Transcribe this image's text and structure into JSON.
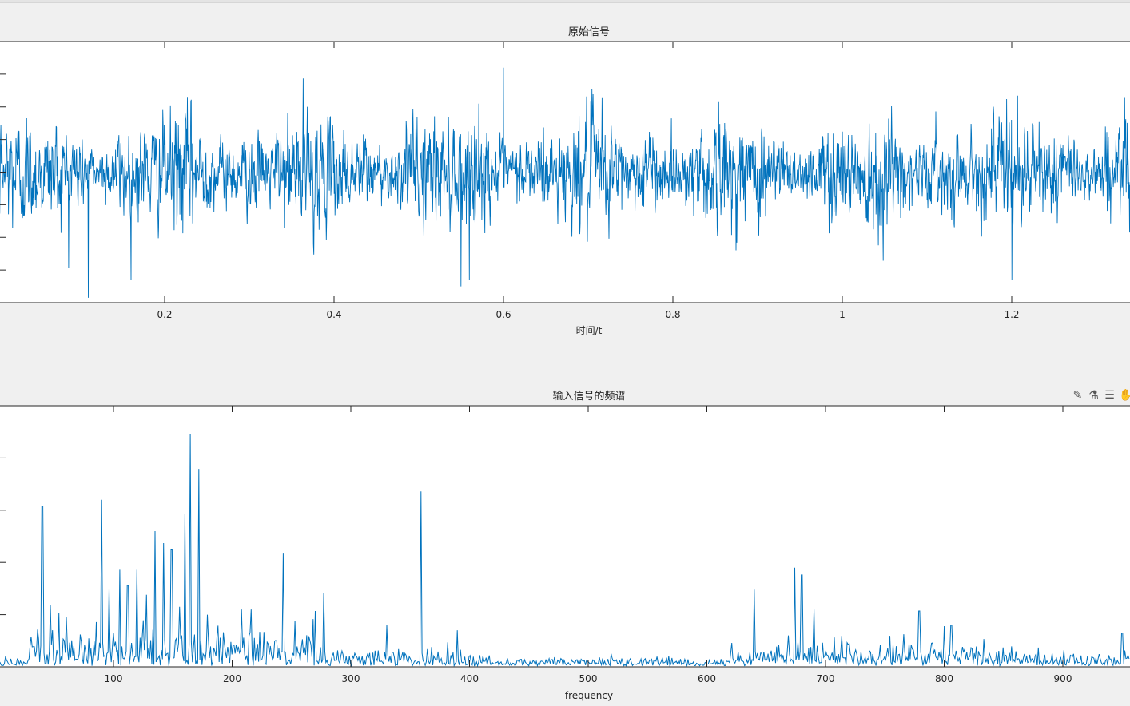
{
  "colors": {
    "line": "#0072bd",
    "axes": "#262626",
    "figure_bg": "#f0f0f0",
    "plot_bg": "#ffffff"
  },
  "toolbar": {
    "icons": [
      "brush-icon",
      "data-cursor-icon",
      "legend-toggle-icon",
      "pan-hand-icon"
    ]
  },
  "chart_data": [
    {
      "type": "line",
      "title": "原始信号",
      "xlabel": "时间/t",
      "ylabel": "",
      "xlim": [
        0,
        1.34
      ],
      "ylim": [
        -4,
        4
      ],
      "xticks": [
        0.2,
        0.4,
        0.6,
        0.8,
        1,
        1.2
      ],
      "xtick_labels": [
        "0.2",
        "0.4",
        "0.6",
        "0.8",
        "1",
        "1.2"
      ],
      "yticks": [
        -3,
        -2,
        -1,
        0,
        1,
        2,
        3
      ],
      "series_description": "dense broadband noise signal centred on 0, typical amplitude within ±2.5, extremes about +3.2 / -3.8",
      "extremes": [
        {
          "x": 0.11,
          "y": -3.85
        },
        {
          "x": 0.6,
          "y": 3.2
        },
        {
          "x": 0.55,
          "y": -3.5
        },
        {
          "x": 1.2,
          "y": -3.3
        }
      ],
      "grid": false
    },
    {
      "type": "line",
      "title": "输入信号的频谱",
      "xlabel": "frequency",
      "ylabel": "",
      "xlim": [
        0,
        956
      ],
      "ylim": [
        0,
        5
      ],
      "xticks": [
        100,
        200,
        300,
        400,
        500,
        600,
        700,
        800,
        900
      ],
      "xtick_labels": [
        "100",
        "200",
        "300",
        "400",
        "500",
        "600",
        "700",
        "800",
        "900"
      ],
      "yticks": [
        1,
        2,
        3,
        4
      ],
      "peaks": [
        {
          "f": 40,
          "a": 3.08
        },
        {
          "f": 47,
          "a": 1.18
        },
        {
          "f": 60,
          "a": 0.95
        },
        {
          "f": 90,
          "a": 3.2
        },
        {
          "f": 96,
          "a": 1.5
        },
        {
          "f": 105,
          "a": 1.86
        },
        {
          "f": 112,
          "a": 1.56
        },
        {
          "f": 120,
          "a": 1.86
        },
        {
          "f": 128,
          "a": 1.38
        },
        {
          "f": 135,
          "a": 2.6
        },
        {
          "f": 142,
          "a": 2.37
        },
        {
          "f": 149,
          "a": 2.24
        },
        {
          "f": 156,
          "a": 1.15
        },
        {
          "f": 160,
          "a": 2.93
        },
        {
          "f": 165,
          "a": 4.46
        },
        {
          "f": 172,
          "a": 3.79
        },
        {
          "f": 179,
          "a": 1.0
        },
        {
          "f": 208,
          "a": 1.1
        },
        {
          "f": 216,
          "a": 1.1
        },
        {
          "f": 243,
          "a": 2.17
        },
        {
          "f": 270,
          "a": 1.07
        },
        {
          "f": 277,
          "a": 1.42
        },
        {
          "f": 330,
          "a": 0.8
        },
        {
          "f": 359,
          "a": 3.36
        },
        {
          "f": 390,
          "a": 0.7
        },
        {
          "f": 640,
          "a": 1.48
        },
        {
          "f": 674,
          "a": 1.9
        },
        {
          "f": 680,
          "a": 1.76
        },
        {
          "f": 690,
          "a": 1.1
        },
        {
          "f": 779,
          "a": 1.07
        },
        {
          "f": 800,
          "a": 0.78
        },
        {
          "f": 806,
          "a": 0.8
        },
        {
          "f": 950,
          "a": 0.65
        }
      ],
      "grid": false
    }
  ]
}
